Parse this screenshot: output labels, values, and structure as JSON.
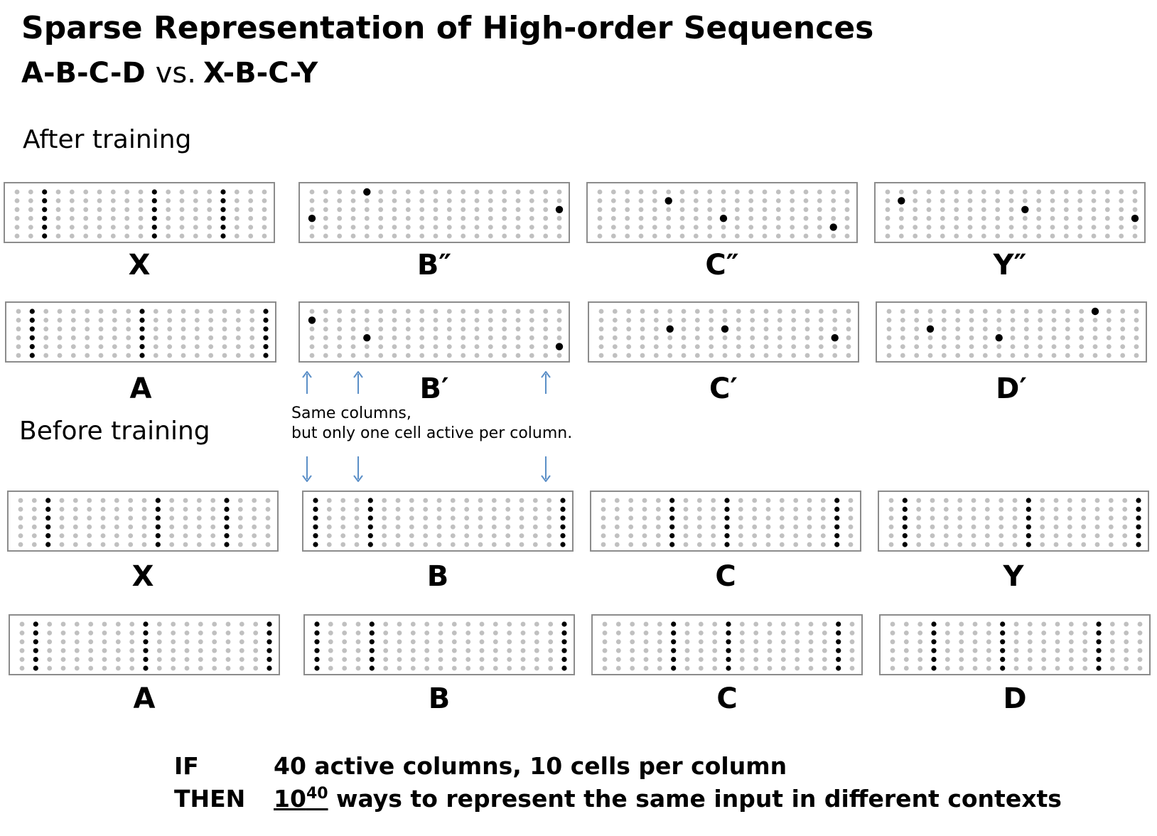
{
  "title": "Sparse Representation of High-order Sequences",
  "subtitle": {
    "seq1": "A-B-C-D",
    "vs": "vs.",
    "seq2": "X-B-C-Y"
  },
  "sections": {
    "after": "After training",
    "before": "Before training"
  },
  "grid": {
    "columns": 19,
    "cells_per_column": 6
  },
  "colors": {
    "inactive_cell": "#c0c0c0",
    "active_cell": "#000000",
    "frame": "#8c8c8c",
    "arrow": "#5b8fc7"
  },
  "panels": [
    {
      "id": "after-x",
      "label": "X",
      "active_columns": [
        2,
        10,
        15
      ],
      "active_cells": "all"
    },
    {
      "id": "after-b2",
      "label": "B″",
      "active_cells": [
        [
          0,
          3
        ],
        [
          4,
          0
        ],
        [
          18,
          2
        ]
      ]
    },
    {
      "id": "after-c2",
      "label": "C″",
      "active_cells": [
        [
          5,
          1
        ],
        [
          9,
          3
        ],
        [
          17,
          4
        ]
      ]
    },
    {
      "id": "after-y2",
      "label": "Y″",
      "active_cells": [
        [
          1,
          1
        ],
        [
          10,
          2
        ],
        [
          18,
          3
        ]
      ]
    },
    {
      "id": "after-a",
      "label": "A",
      "active_columns": [
        1,
        9,
        18
      ],
      "active_cells": "all"
    },
    {
      "id": "after-b1",
      "label": "B′",
      "active_cells": [
        [
          0,
          1
        ],
        [
          4,
          3
        ],
        [
          18,
          4
        ]
      ]
    },
    {
      "id": "after-c1",
      "label": "C′",
      "active_cells": [
        [
          5,
          2
        ],
        [
          9,
          2
        ],
        [
          17,
          3
        ]
      ]
    },
    {
      "id": "after-d1",
      "label": "D′",
      "active_cells": [
        [
          3,
          2
        ],
        [
          8,
          3
        ],
        [
          15,
          0
        ]
      ]
    },
    {
      "id": "before-x",
      "label": "X",
      "active_columns": [
        2,
        10,
        15
      ],
      "active_cells": "all"
    },
    {
      "id": "before-b",
      "label": "B",
      "active_columns": [
        0,
        4,
        18
      ],
      "active_cells": "all"
    },
    {
      "id": "before-c",
      "label": "C",
      "active_columns": [
        5,
        9,
        17
      ],
      "active_cells": "all"
    },
    {
      "id": "before-y",
      "label": "Y",
      "active_columns": [
        1,
        10,
        18
      ],
      "active_cells": "all"
    },
    {
      "id": "before-a",
      "label": "A",
      "active_columns": [
        1,
        9,
        18
      ],
      "active_cells": "all"
    },
    {
      "id": "before-b2",
      "label": "B",
      "active_columns": [
        0,
        4,
        18
      ],
      "active_cells": "all"
    },
    {
      "id": "before-c2",
      "label": "C",
      "active_columns": [
        5,
        9,
        17
      ],
      "active_cells": "all"
    },
    {
      "id": "before-d",
      "label": "D",
      "active_columns": [
        3,
        8,
        15
      ],
      "active_cells": "all"
    }
  ],
  "annotation": {
    "line1": "Same columns,",
    "line2": "but only one cell active per column."
  },
  "bottom": {
    "if_label": "IF",
    "if_text": "40 active columns, 10 cells per column",
    "then_label": "THEN",
    "then_base": "10",
    "then_exp": "40",
    "then_text": " ways to represent the same input in different contexts"
  }
}
